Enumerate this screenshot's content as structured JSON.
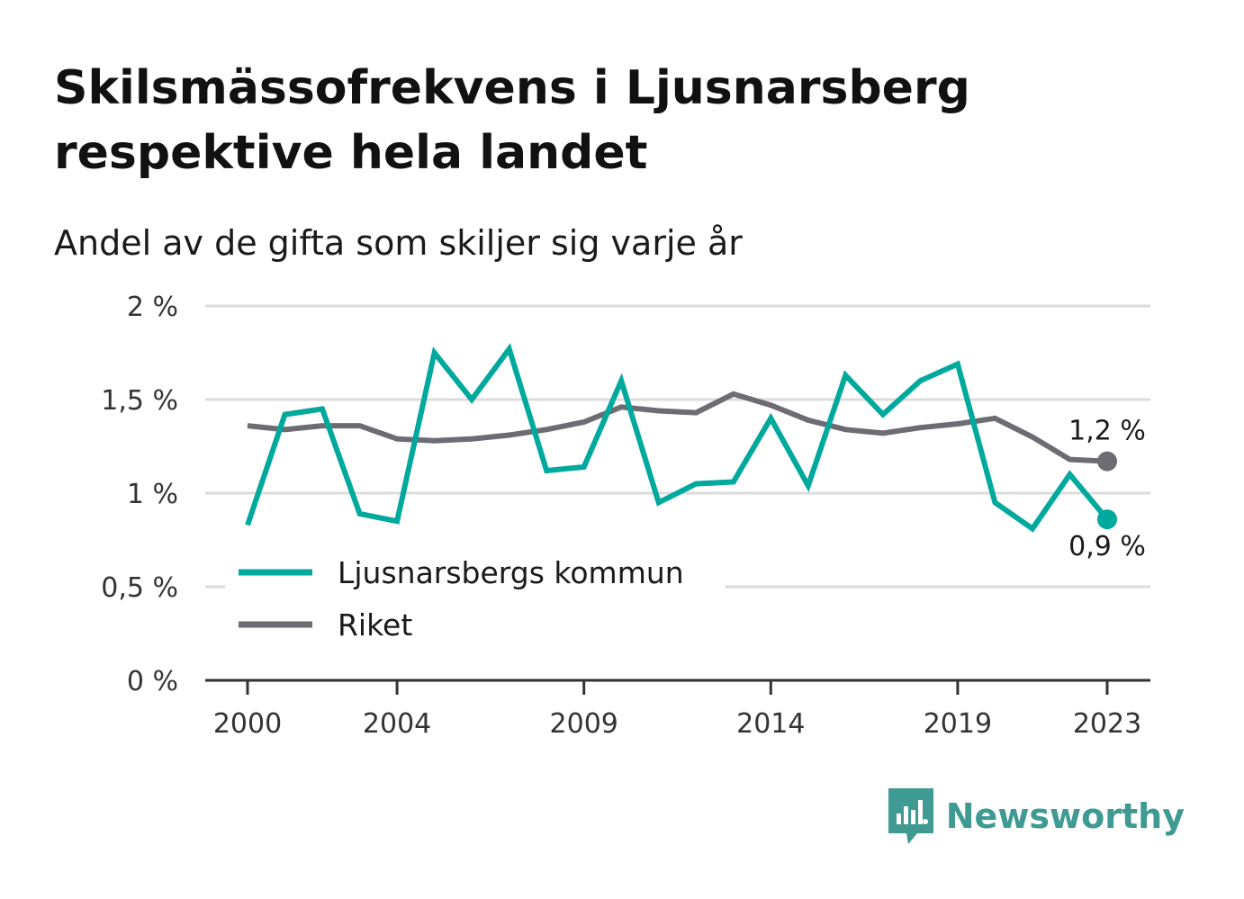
{
  "title": "Skilsmässofrekvens i Ljusnarsberg respektive hela landet",
  "subtitle": "Andel av de gifta som skiljer sig varje år",
  "brand": "Newsworthy",
  "colors": {
    "kommun": "#00a99d",
    "riket": "#6d6c73",
    "grid": "#dcdcdc",
    "axis": "#333333"
  },
  "chart_data": {
    "type": "line",
    "ylim": [
      0,
      2
    ],
    "y_ticks": [
      0,
      0.5,
      1,
      1.5,
      2
    ],
    "y_tick_labels": [
      "0 %",
      "0,5 %",
      "1 %",
      "1,5 %",
      "2 %"
    ],
    "x_ticks": [
      2000,
      2004,
      2009,
      2014,
      2019,
      2023
    ],
    "x_tick_labels": [
      "2000",
      "2004",
      "2009",
      "2014",
      "2019",
      "2023"
    ],
    "x": [
      2000,
      2001,
      2002,
      2003,
      2004,
      2005,
      2006,
      2007,
      2008,
      2009,
      2010,
      2011,
      2012,
      2013,
      2014,
      2015,
      2016,
      2017,
      2018,
      2019,
      2020,
      2021,
      2022,
      2023
    ],
    "series": [
      {
        "name": "Ljusnarsbergs kommun",
        "key": "kommun",
        "values": [
          0.83,
          1.42,
          1.45,
          0.89,
          0.85,
          1.75,
          1.5,
          1.77,
          1.12,
          1.14,
          1.6,
          0.95,
          1.05,
          1.06,
          1.4,
          1.04,
          1.63,
          1.42,
          1.6,
          1.69,
          0.95,
          0.81,
          1.1,
          0.86
        ],
        "end_label": "0,9 %"
      },
      {
        "name": "Riket",
        "key": "riket",
        "values": [
          1.36,
          1.34,
          1.36,
          1.36,
          1.29,
          1.28,
          1.29,
          1.31,
          1.34,
          1.38,
          1.46,
          1.44,
          1.43,
          1.53,
          1.47,
          1.39,
          1.34,
          1.32,
          1.35,
          1.37,
          1.4,
          1.3,
          1.18,
          1.17
        ],
        "end_label": "1,2 %"
      }
    ],
    "legend": [
      "Ljusnarsbergs kommun",
      "Riket"
    ],
    "legend_position": "lower-left",
    "grid": true
  }
}
